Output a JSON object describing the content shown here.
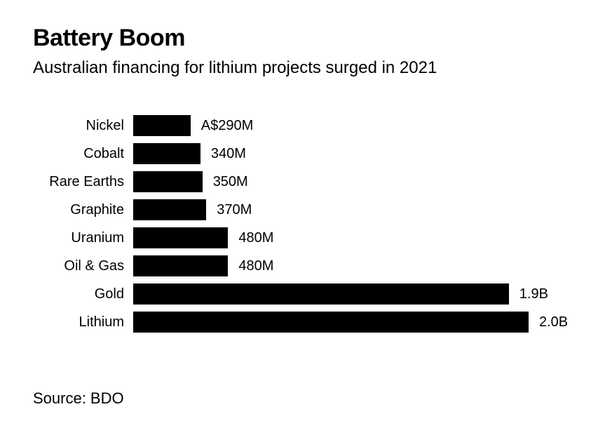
{
  "header": {
    "title": "Battery Boom",
    "subtitle": "Australian financing for lithium projects surged in 2021"
  },
  "footer": {
    "source": "Source: BDO"
  },
  "colors": {
    "bar": "#000000",
    "background": "#ffffff",
    "text": "#000000"
  },
  "chart_data": {
    "type": "bar",
    "orientation": "horizontal",
    "title": "Battery Boom",
    "subtitle": "Australian financing for lithium projects surged in 2021",
    "source": "Source: BDO",
    "categories": [
      "Nickel",
      "Cobalt",
      "Rare Earths",
      "Graphite",
      "Uranium",
      "Oil & Gas",
      "Gold",
      "Lithium"
    ],
    "values": [
      290,
      340,
      350,
      370,
      480,
      480,
      1900,
      2000
    ],
    "value_labels": [
      "A$290M",
      "340M",
      "350M",
      "370M",
      "480M",
      "480M",
      "1.9B",
      "2.0B"
    ],
    "xlim": [
      0,
      2000
    ],
    "grid": false,
    "legend": false,
    "bar_color": "#000000"
  }
}
